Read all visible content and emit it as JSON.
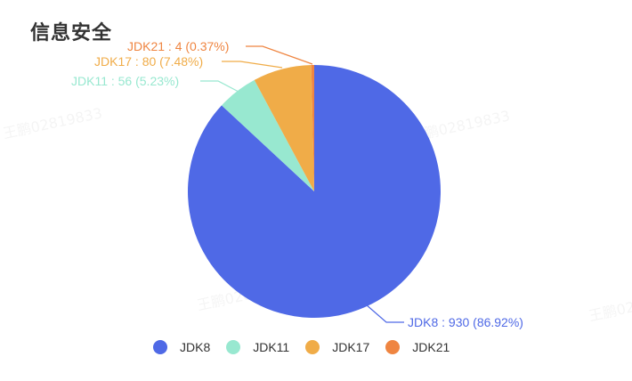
{
  "title": "信息安全",
  "watermarks": [
    "王鹏02819833",
    "王鹏02819833",
    "王鹏02819833",
    "王鹏02819833"
  ],
  "chart_data": {
    "type": "pie",
    "title": "信息安全",
    "categories": [
      "JDK8",
      "JDK11",
      "JDK17",
      "JDK21"
    ],
    "values": [
      930,
      56,
      80,
      4
    ],
    "percentages": [
      86.92,
      5.23,
      7.48,
      0.37
    ],
    "colors": [
      "#4f69e6",
      "#98e8d0",
      "#f0ac48",
      "#ef8541"
    ],
    "labels": [
      "JDK8 : 930 (86.92%)",
      "JDK11 : 56 (5.23%)",
      "JDK17 : 80 (7.48%)",
      "JDK21 : 4 (0.37%)"
    ],
    "legend_position": "bottom",
    "start_angle": "top, clockwise"
  },
  "legend": {
    "items": [
      {
        "label": "JDK8",
        "color": "#4f69e6"
      },
      {
        "label": "JDK11",
        "color": "#98e8d0"
      },
      {
        "label": "JDK17",
        "color": "#f0ac48"
      },
      {
        "label": "JDK21",
        "color": "#ef8541"
      }
    ]
  }
}
